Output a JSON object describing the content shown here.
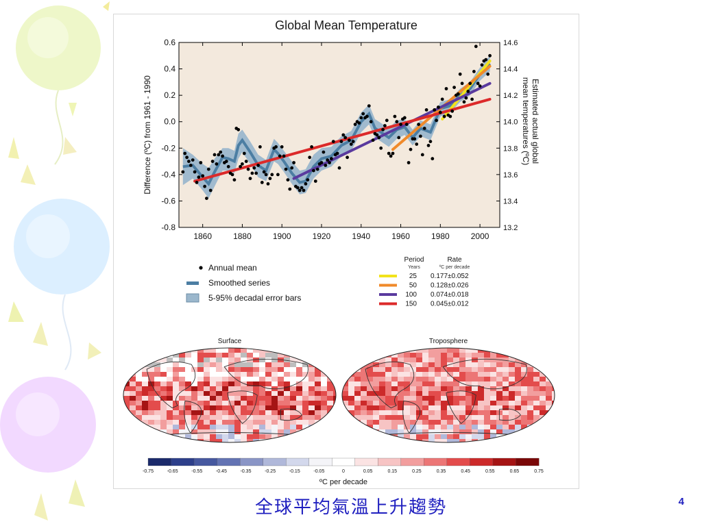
{
  "slide": {
    "caption": "全球平均氣溫上升趨勢",
    "page_number": "4"
  },
  "chart_data": [
    {
      "type": "scatter",
      "title": "Global Mean Temperature",
      "ylabel": "Difference (ºC) from 1961 - 1990",
      "ylabel2": "Estimated actual global mean temperatures (ºC)",
      "xlim": [
        1848,
        2010
      ],
      "ylim": [
        -0.8,
        0.6
      ],
      "ylim2": [
        13.2,
        14.6
      ],
      "xticks": [
        1860,
        1880,
        1900,
        1920,
        1940,
        1960,
        1980,
        2000
      ],
      "yticks": [
        -0.8,
        -0.6,
        -0.4,
        -0.2,
        0.0,
        0.2,
        0.4,
        0.6
      ],
      "yticks2": [
        13.2,
        13.4,
        13.6,
        13.8,
        14.0,
        14.2,
        14.4,
        14.6
      ],
      "annual_mean": {
        "name": "Annual mean",
        "x": [
          1850,
          1851,
          1852,
          1853,
          1854,
          1855,
          1856,
          1857,
          1858,
          1859,
          1860,
          1861,
          1862,
          1863,
          1864,
          1865,
          1866,
          1867,
          1868,
          1869,
          1870,
          1871,
          1872,
          1873,
          1874,
          1875,
          1876,
          1877,
          1878,
          1879,
          1880,
          1881,
          1882,
          1883,
          1884,
          1885,
          1886,
          1887,
          1888,
          1889,
          1890,
          1891,
          1892,
          1893,
          1894,
          1895,
          1896,
          1897,
          1898,
          1899,
          1900,
          1901,
          1902,
          1903,
          1904,
          1905,
          1906,
          1907,
          1908,
          1909,
          1910,
          1911,
          1912,
          1913,
          1914,
          1915,
          1916,
          1917,
          1918,
          1919,
          1920,
          1921,
          1922,
          1923,
          1924,
          1925,
          1926,
          1927,
          1928,
          1929,
          1930,
          1931,
          1932,
          1933,
          1934,
          1935,
          1936,
          1937,
          1938,
          1939,
          1940,
          1941,
          1942,
          1943,
          1944,
          1945,
          1946,
          1947,
          1948,
          1949,
          1950,
          1951,
          1952,
          1953,
          1954,
          1955,
          1956,
          1957,
          1958,
          1959,
          1960,
          1961,
          1962,
          1963,
          1964,
          1965,
          1966,
          1967,
          1968,
          1969,
          1970,
          1971,
          1972,
          1973,
          1974,
          1975,
          1976,
          1977,
          1978,
          1979,
          1980,
          1981,
          1982,
          1983,
          1984,
          1985,
          1986,
          1987,
          1988,
          1989,
          1990,
          1991,
          1992,
          1993,
          1994,
          1995,
          1996,
          1997,
          1998,
          1999,
          2000,
          2001,
          2002,
          2003,
          2004,
          2005
        ],
        "y": [
          -0.38,
          -0.24,
          -0.27,
          -0.3,
          -0.33,
          -0.29,
          -0.38,
          -0.46,
          -0.42,
          -0.31,
          -0.41,
          -0.49,
          -0.58,
          -0.36,
          -0.52,
          -0.3,
          -0.25,
          -0.32,
          -0.25,
          -0.23,
          -0.26,
          -0.31,
          -0.3,
          -0.34,
          -0.39,
          -0.4,
          -0.44,
          -0.05,
          -0.06,
          -0.34,
          -0.32,
          -0.24,
          -0.3,
          -0.36,
          -0.43,
          -0.39,
          -0.35,
          -0.39,
          -0.33,
          -0.19,
          -0.46,
          -0.38,
          -0.4,
          -0.47,
          -0.43,
          -0.4,
          -0.2,
          -0.19,
          -0.4,
          -0.26,
          -0.19,
          -0.26,
          -0.36,
          -0.44,
          -0.51,
          -0.35,
          -0.31,
          -0.49,
          -0.5,
          -0.52,
          -0.5,
          -0.52,
          -0.47,
          -0.44,
          -0.27,
          -0.19,
          -0.37,
          -0.45,
          -0.36,
          -0.32,
          -0.31,
          -0.23,
          -0.33,
          -0.29,
          -0.31,
          -0.28,
          -0.15,
          -0.25,
          -0.24,
          -0.35,
          -0.15,
          -0.1,
          -0.12,
          -0.27,
          -0.14,
          -0.17,
          -0.15,
          -0.02,
          0.0,
          -0.01,
          0.03,
          0.06,
          0.03,
          0.04,
          0.12,
          0.0,
          -0.14,
          -0.09,
          -0.1,
          -0.12,
          -0.2,
          -0.06,
          -0.03,
          0.01,
          -0.24,
          -0.26,
          -0.24,
          0.04,
          0.0,
          -0.12,
          -0.02,
          0.02,
          0.03,
          -0.02,
          -0.31,
          -0.21,
          -0.13,
          -0.13,
          -0.17,
          -0.02,
          -0.11,
          -0.25,
          -0.05,
          0.09,
          -0.18,
          -0.15,
          -0.28,
          0.09,
          0.01,
          0.11,
          0.07,
          0.17,
          0.04,
          0.25,
          0.05,
          0.04,
          0.08,
          0.26,
          0.2,
          0.21,
          0.36,
          0.29,
          0.15,
          0.18,
          0.23,
          0.29,
          0.17,
          0.38,
          0.57,
          0.29,
          0.27,
          0.43,
          0.46,
          0.47,
          0.36,
          0.5
        ]
      },
      "smoothed_series": {
        "name": "Smoothed series",
        "x": [
          1850,
          1855,
          1860,
          1863,
          1866,
          1870,
          1873,
          1876,
          1878,
          1880,
          1884,
          1888,
          1892,
          1896,
          1898,
          1901,
          1905,
          1909,
          1912,
          1916,
          1920,
          1925,
          1930,
          1935,
          1940,
          1944,
          1947,
          1950,
          1954,
          1958,
          1962,
          1966,
          1970,
          1975,
          1980,
          1985,
          1990,
          1995,
          2000,
          2005
        ],
        "y": [
          -0.34,
          -0.33,
          -0.42,
          -0.47,
          -0.38,
          -0.27,
          -0.28,
          -0.3,
          -0.18,
          -0.14,
          -0.23,
          -0.33,
          -0.37,
          -0.21,
          -0.24,
          -0.3,
          -0.39,
          -0.46,
          -0.45,
          -0.34,
          -0.28,
          -0.26,
          -0.18,
          -0.14,
          0.0,
          0.06,
          -0.05,
          -0.08,
          -0.12,
          -0.06,
          -0.04,
          -0.12,
          -0.05,
          -0.08,
          0.1,
          0.12,
          0.2,
          0.25,
          0.36,
          0.44
        ],
        "upper": [
          -0.2,
          -0.25,
          -0.32,
          -0.35,
          -0.28,
          -0.2,
          -0.2,
          -0.22,
          -0.09,
          -0.06,
          -0.15,
          -0.25,
          -0.29,
          -0.13,
          -0.16,
          -0.22,
          -0.3,
          -0.37,
          -0.36,
          -0.25,
          -0.2,
          -0.19,
          -0.11,
          -0.07,
          0.07,
          0.13,
          0.02,
          -0.01,
          -0.05,
          0.01,
          0.02,
          -0.06,
          0.01,
          -0.02,
          0.15,
          0.17,
          0.25,
          0.3,
          0.41,
          0.5
        ],
        "lower": [
          -0.48,
          -0.43,
          -0.52,
          -0.58,
          -0.49,
          -0.37,
          -0.37,
          -0.39,
          -0.28,
          -0.23,
          -0.32,
          -0.42,
          -0.45,
          -0.3,
          -0.32,
          -0.38,
          -0.47,
          -0.55,
          -0.54,
          -0.43,
          -0.37,
          -0.34,
          -0.26,
          -0.22,
          -0.08,
          -0.02,
          -0.12,
          -0.15,
          -0.19,
          -0.13,
          -0.1,
          -0.18,
          -0.11,
          -0.14,
          0.04,
          0.07,
          0.15,
          0.2,
          0.31,
          0.38
        ]
      },
      "error_band_name": "5-95% decadal error bars",
      "trend_table": {
        "header_period": "Period",
        "header_period_sub": "Years",
        "header_rate": "Rate",
        "header_rate_sub": "ºC  per decade"
      },
      "trends": [
        {
          "period": "25",
          "rate": "0.177±0.052",
          "color": "#f2e21b",
          "x": [
            1981,
            2005
          ],
          "y": [
            0.02,
            0.46
          ]
        },
        {
          "period": "50",
          "rate": "0.128±0.026",
          "color": "#f08a2a",
          "x": [
            1956,
            2005
          ],
          "y": [
            -0.21,
            0.42
          ]
        },
        {
          "period": "100",
          "rate": "0.074±0.018",
          "color": "#5a3a9e",
          "x": [
            1906,
            2005
          ],
          "y": [
            -0.43,
            0.29
          ]
        },
        {
          "period": "150",
          "rate": "0.045±0.012",
          "color": "#dc2a2a",
          "x": [
            1856,
            2005
          ],
          "y": [
            -0.45,
            0.17
          ]
        }
      ],
      "colors": {
        "plot_background": "#f3e9dd",
        "points": "#000000",
        "smoothed": "#4c7ea3",
        "band": "#9bb7cc"
      }
    },
    {
      "type": "heatmap",
      "maps": [
        {
          "title": "Surface"
        },
        {
          "title": "Troposphere"
        }
      ],
      "colorbar": {
        "ticks": [
          "-0.75",
          "-0.65",
          "-0.55",
          "-0.45",
          "-0.35",
          "-0.25",
          "-0.15",
          "-0.05",
          "0",
          "0.05",
          "0.15",
          "0.25",
          "0.35",
          "0.45",
          "0.55",
          "0.65",
          "0.75"
        ],
        "label": "ºC per decade",
        "colors": [
          "#1b2a6b",
          "#2d3f8a",
          "#46589f",
          "#6373b3",
          "#8a95c6",
          "#b0b8da",
          "#d3d8ec",
          "#f4f4f8",
          "#ffffff",
          "#fbe3e3",
          "#f7c4c4",
          "#f29e9e",
          "#ec7676",
          "#e34c4c",
          "#cc2a2a",
          "#a51414",
          "#7a0808"
        ]
      }
    }
  ]
}
